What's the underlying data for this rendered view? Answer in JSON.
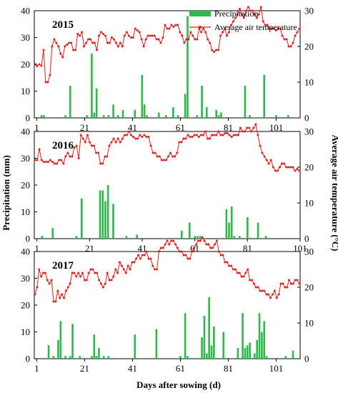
{
  "chart_data": {
    "type": "bar",
    "legend": {
      "precip_label": "Precipitation",
      "temp_label": "Average air temperature",
      "position": "top-right"
    },
    "left_axis_label": "Precipitation  (mm)",
    "right_axis_label": "Average air temperature (°C)",
    "x_axis_label": "Days  after sowing  (d)",
    "colors": {
      "precipitation": "#2db84a",
      "temperature": "#e0201f"
    },
    "panels": [
      {
        "label": "2015",
        "ylim": [
          0,
          40
        ],
        "y2lim": [
          0,
          30
        ],
        "yticks": [
          "0",
          "10",
          "20",
          "30",
          "40"
        ],
        "y2ticks": [
          "0",
          "10",
          "20",
          "30"
        ],
        "xlim": [
          0,
          111
        ],
        "xticks": [
          "1",
          "21",
          "41",
          "61",
          "81",
          "101"
        ],
        "precip_x": [
          3,
          4,
          13,
          15,
          22,
          24,
          25,
          26,
          29,
          31,
          33,
          35,
          37,
          42,
          45,
          46,
          47,
          52,
          55,
          58,
          60,
          63,
          64,
          68,
          70,
          72,
          76,
          77,
          78,
          88,
          90,
          96,
          101,
          106
        ],
        "precip": [
          1,
          1,
          1,
          12,
          1,
          24,
          2,
          11,
          1,
          1,
          5,
          1,
          3,
          3,
          16,
          5,
          1,
          2,
          1,
          4,
          1,
          9,
          38,
          1,
          12,
          4,
          3,
          1,
          2,
          12,
          1,
          16,
          1,
          1
        ],
        "temp": [
          15,
          14.5,
          15,
          14.6,
          19,
          10,
          10,
          12,
          20,
          22,
          21,
          20,
          18,
          17,
          20,
          20.5,
          21,
          21,
          19,
          19,
          23.5,
          23,
          24,
          20,
          21,
          22,
          22,
          21,
          21,
          19,
          23,
          24,
          23.5,
          23,
          21,
          21,
          22.5,
          22,
          21,
          20,
          21,
          20,
          23,
          24,
          23,
          22.5,
          22.5,
          25,
          24.5,
          24,
          22,
          20,
          22,
          23,
          23,
          23,
          23,
          22,
          22,
          21,
          22.5,
          26,
          25,
          25,
          26,
          25.5,
          26,
          26,
          24,
          23,
          21,
          22,
          22,
          24,
          23,
          22,
          22,
          25,
          24,
          25,
          24,
          22,
          21,
          19,
          18.5,
          19,
          19,
          23,
          24,
          25,
          23,
          24,
          26,
          27,
          28,
          29,
          30.5,
          29,
          28,
          30,
          31,
          30,
          30,
          29,
          28,
          29,
          31,
          27,
          26,
          26,
          25,
          25,
          25,
          24.5,
          25,
          25,
          23,
          22,
          22,
          20,
          20,
          21,
          23,
          24,
          25
        ]
      },
      {
        "label": "2016",
        "ylim": [
          0,
          40
        ],
        "y2lim": [
          0,
          30
        ],
        "yticks": [
          "0",
          "10",
          "20",
          "30",
          "40"
        ],
        "y2ticks": [
          "0",
          "10",
          "20",
          "30"
        ],
        "xlim": [
          0,
          101
        ],
        "xticks": [
          "1",
          "21",
          "41",
          "61",
          "81",
          "101"
        ],
        "precip_x": [
          3,
          7,
          16,
          18,
          25,
          26,
          27,
          28,
          30,
          35,
          39,
          56,
          59,
          61,
          62,
          63,
          73,
          74,
          75,
          76,
          78,
          81,
          85,
          88
        ],
        "precip": [
          1,
          4,
          1,
          15,
          18,
          18,
          14,
          20,
          13,
          1,
          1.5,
          3,
          6,
          1,
          1,
          1,
          11,
          6,
          12,
          1,
          1,
          8,
          6,
          1
        ],
        "temp": [
          22,
          22,
          25,
          22,
          21.5,
          21.5,
          21.5,
          22,
          21.5,
          21,
          21,
          22,
          22,
          21,
          23,
          24,
          23,
          23,
          25.5,
          26,
          22.5,
          29,
          28,
          27,
          29,
          27,
          26,
          26,
          24,
          24,
          21,
          21,
          23,
          23,
          26,
          27,
          28,
          27,
          28,
          27,
          28,
          29,
          29,
          30,
          29,
          28.5,
          28,
          28,
          29,
          28.5,
          29,
          28.5,
          28.5,
          26,
          24,
          24,
          23,
          23,
          22,
          22,
          22,
          23,
          24,
          23,
          23,
          24,
          27,
          27,
          28,
          28,
          29,
          28.5,
          28.5,
          29,
          29,
          28.5,
          29,
          29,
          30,
          28,
          28,
          29,
          29,
          29,
          30,
          29,
          29,
          29.5,
          29.5,
          29,
          28.5,
          29,
          29,
          29,
          31,
          30,
          30,
          31,
          31,
          30,
          31,
          32,
          29,
          26,
          24,
          23,
          22,
          21,
          22,
          20,
          19,
          19,
          20,
          21,
          21,
          20,
          20,
          20,
          20,
          19,
          19.5,
          19
        ]
      },
      {
        "label": "2017",
        "ylim": [
          0,
          40
        ],
        "y2lim": [
          0,
          30
        ],
        "yticks": [
          "0",
          "10",
          "20",
          "30",
          "40"
        ],
        "y2ticks": [
          "0",
          "10",
          "20",
          "30"
        ],
        "xlim": [
          0,
          111
        ],
        "xticks": [
          "1",
          "21",
          "41",
          "61",
          "81",
          "101"
        ],
        "precip_x": [
          6,
          8,
          10,
          11,
          13,
          15,
          16,
          19,
          24,
          25,
          26,
          27,
          29,
          31,
          42,
          51,
          61,
          63,
          64,
          70,
          71,
          72,
          73,
          74,
          75,
          79,
          85,
          87,
          88,
          89,
          90,
          92,
          93,
          94,
          95,
          96,
          97,
          105,
          108
        ],
        "precip": [
          5,
          1,
          7,
          14,
          1,
          1,
          13,
          1,
          1,
          9,
          1,
          4,
          1,
          1,
          9,
          11,
          1,
          17,
          1,
          8,
          16,
          2,
          23,
          5,
          12,
          10,
          4,
          17,
          4,
          5,
          6,
          2,
          7,
          17,
          10,
          14,
          1,
          1,
          3
        ],
        "temp": [
          18,
          20,
          25,
          23,
          24,
          24,
          22,
          21,
          22,
          16,
          16,
          19,
          17,
          18,
          17,
          19,
          20,
          21,
          24,
          24,
          23,
          24,
          23,
          24,
          22,
          22,
          24,
          25,
          25,
          24,
          24,
          22,
          21,
          20,
          21,
          24,
          22,
          22,
          23,
          25,
          24,
          27,
          26,
          25,
          24,
          26,
          25,
          27,
          27,
          28,
          29,
          28,
          29,
          29,
          30,
          28,
          28,
          26,
          25,
          25,
          30,
          31,
          31,
          32,
          33,
          32,
          33,
          33,
          32,
          31,
          30,
          30,
          29,
          29,
          28,
          28,
          30,
          31,
          32,
          33,
          33,
          34,
          33,
          32,
          32,
          31,
          31,
          32,
          33,
          30,
          29,
          29,
          27,
          27,
          26,
          26,
          25,
          25,
          24,
          24,
          23,
          23,
          24,
          25,
          22,
          22,
          21,
          20,
          20,
          19,
          19,
          19,
          18,
          18,
          17,
          18,
          19,
          17,
          18,
          21,
          21,
          20,
          20,
          22,
          21,
          21,
          22,
          22,
          21
        ]
      }
    ]
  }
}
